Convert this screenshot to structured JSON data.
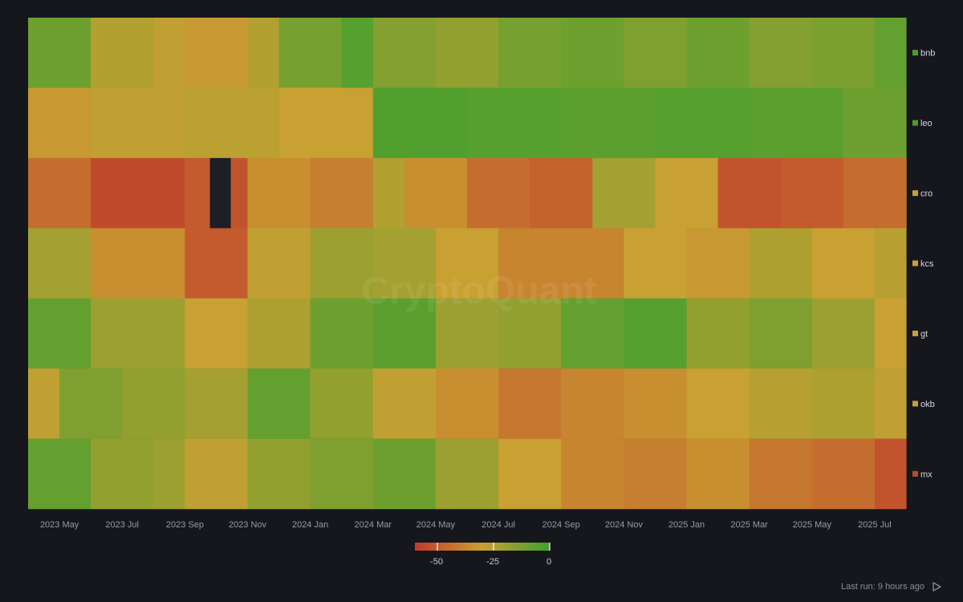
{
  "chart_data": {
    "type": "heatmap",
    "rows": [
      "bnb",
      "leo",
      "cro",
      "kcs",
      "gt",
      "okb",
      "mx"
    ],
    "row_colors": {
      "bnb": "#4e9a2c",
      "leo": "#4e9a2c",
      "cro": "#c9a032",
      "kcs": "#c9a032",
      "gt": "#c9a032",
      "okb": "#c9a032",
      "mx": "#b84a2a"
    },
    "x_ticks": [
      "2023 May",
      "2023 Jul",
      "2023 Sep",
      "2023 Nov",
      "2024 Jan",
      "2024 Mar",
      "2024 May",
      "2024 Jul",
      "2024 Sep",
      "2024 Nov",
      "2025 Jan",
      "2025 Mar",
      "2025 May",
      "2025 Jul"
    ],
    "x_range": [
      "2023-04",
      "2025-08"
    ],
    "segments": {
      "bnb": [
        [
          "2023-04",
          -10
        ],
        [
          "2023-06",
          -25
        ],
        [
          "2023-08",
          -28
        ],
        [
          "2023-09",
          -32
        ],
        [
          "2023-11",
          -25
        ],
        [
          "2023-12",
          -12
        ],
        [
          "2024-01",
          -12
        ],
        [
          "2024-02",
          -5
        ],
        [
          "2024-03",
          -15
        ],
        [
          "2024-05",
          -18
        ],
        [
          "2024-07",
          -12
        ],
        [
          "2024-09",
          -10
        ],
        [
          "2024-11",
          -14
        ],
        [
          "2025-01",
          -10
        ],
        [
          "2025-03",
          -15
        ],
        [
          "2025-05",
          -13
        ],
        [
          "2025-07",
          -8
        ]
      ],
      "leo": [
        [
          "2023-04",
          -32
        ],
        [
          "2023-06",
          -28
        ],
        [
          "2023-09",
          -27
        ],
        [
          "2023-12",
          -30
        ],
        [
          "2024-03",
          -4
        ],
        [
          "2024-06",
          -5
        ],
        [
          "2024-09",
          -6
        ],
        [
          "2024-12",
          -5
        ],
        [
          "2025-03",
          -6
        ],
        [
          "2025-06",
          -10
        ]
      ],
      "cro": [
        [
          "2023-04",
          -45
        ],
        [
          "2023-06",
          -55
        ],
        [
          "2023-09",
          -50
        ],
        [
          "2023-10",
          -52
        ],
        [
          "2023-11",
          -35
        ],
        [
          "2024-01",
          -40
        ],
        [
          "2024-03",
          -25
        ],
        [
          "2024-04",
          -35
        ],
        [
          "2024-06",
          -45
        ],
        [
          "2024-08",
          -48
        ],
        [
          "2024-10",
          -22
        ],
        [
          "2024-12",
          -30
        ],
        [
          "2025-02",
          -52
        ],
        [
          "2025-04",
          -50
        ],
        [
          "2025-06",
          -45
        ],
        [
          "2025-08",
          -38
        ]
      ],
      "kcs": [
        [
          "2023-04",
          -22
        ],
        [
          "2023-06",
          -35
        ],
        [
          "2023-09",
          -50
        ],
        [
          "2023-11",
          -28
        ],
        [
          "2024-01",
          -20
        ],
        [
          "2024-03",
          -22
        ],
        [
          "2024-05",
          -30
        ],
        [
          "2024-07",
          -38
        ],
        [
          "2024-09",
          -38
        ],
        [
          "2024-11",
          -30
        ],
        [
          "2025-01",
          -32
        ],
        [
          "2025-03",
          -24
        ],
        [
          "2025-05",
          -30
        ],
        [
          "2025-07",
          -26
        ]
      ],
      "gt": [
        [
          "2023-04",
          -8
        ],
        [
          "2023-06",
          -20
        ],
        [
          "2023-09",
          -30
        ],
        [
          "2023-11",
          -24
        ],
        [
          "2024-01",
          -10
        ],
        [
          "2024-03",
          -6
        ],
        [
          "2024-05",
          -20
        ],
        [
          "2024-07",
          -18
        ],
        [
          "2024-09",
          -8
        ],
        [
          "2024-11",
          -5
        ],
        [
          "2025-01",
          -18
        ],
        [
          "2025-03",
          -14
        ],
        [
          "2025-05",
          -20
        ],
        [
          "2025-07",
          -30
        ]
      ],
      "okb": [
        [
          "2023-04",
          -28
        ],
        [
          "2023-05",
          -14
        ],
        [
          "2023-07",
          -18
        ],
        [
          "2023-09",
          -22
        ],
        [
          "2023-11",
          -8
        ],
        [
          "2024-01",
          -18
        ],
        [
          "2024-03",
          -28
        ],
        [
          "2024-05",
          -35
        ],
        [
          "2024-07",
          -42
        ],
        [
          "2024-09",
          -38
        ],
        [
          "2024-11",
          -35
        ],
        [
          "2025-01",
          -30
        ],
        [
          "2025-03",
          -26
        ],
        [
          "2025-05",
          -24
        ],
        [
          "2025-07",
          -28
        ]
      ],
      "mx": [
        [
          "2023-04",
          -8
        ],
        [
          "2023-06",
          -18
        ],
        [
          "2023-08",
          -20
        ],
        [
          "2023-09",
          -28
        ],
        [
          "2023-11",
          -18
        ],
        [
          "2024-01",
          -14
        ],
        [
          "2024-03",
          -10
        ],
        [
          "2024-05",
          -20
        ],
        [
          "2024-07",
          -30
        ],
        [
          "2024-09",
          -38
        ],
        [
          "2024-11",
          -40
        ],
        [
          "2025-01",
          -35
        ],
        [
          "2025-03",
          -42
        ],
        [
          "2025-05",
          -45
        ],
        [
          "2025-07",
          -52
        ]
      ]
    },
    "gaps": [
      [
        "cro",
        "2023-09-25",
        "2023-10-15"
      ]
    ],
    "colorscale": {
      "min": -60,
      "max": 0,
      "stops": [
        [
          "-60",
          "#c0392b"
        ],
        [
          "-30",
          "#c9a032"
        ],
        [
          "0",
          "#3fa02e"
        ]
      ],
      "ticks": [
        "-50",
        "-25",
        "0"
      ]
    },
    "watermark": "CryptoQuant"
  },
  "footer": {
    "last_run": "Last run: 9 hours ago"
  }
}
